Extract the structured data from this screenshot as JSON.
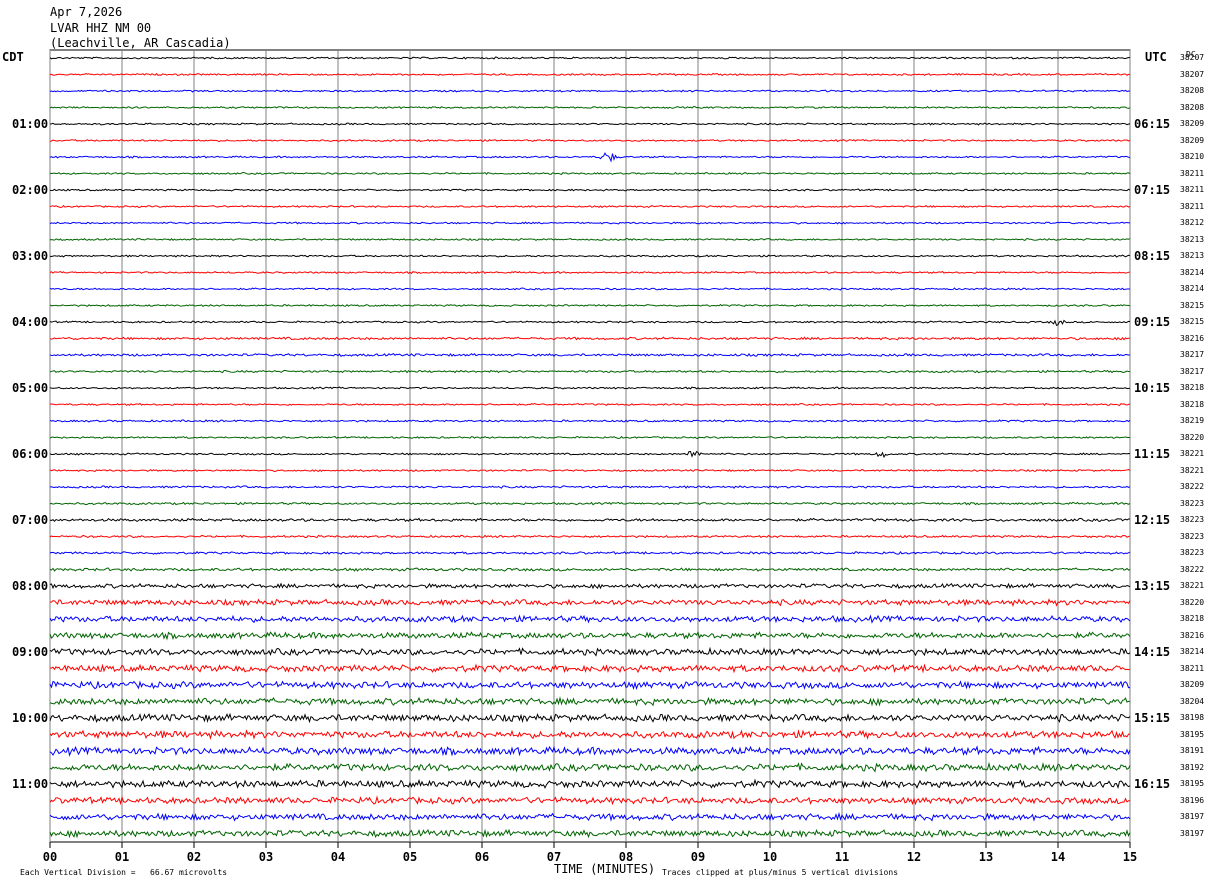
{
  "header": {
    "date": "Apr 7,2026",
    "station": "LVAR HHZ NM 00",
    "location": "(Leachville, AR Cascadia)"
  },
  "left_zone": "CDT",
  "right_zone": "UTC",
  "dc_label": "DC",
  "footer": {
    "scale_note": "Each Vertical Division =   66.67 microvolts",
    "xlabel": "TIME (MINUTES)",
    "clip_note": "Traces clipped at plus/minus 5 vertical divisions"
  },
  "colors": {
    "trace_cycle": [
      "#000000",
      "#ff0000",
      "#0000ff",
      "#006400"
    ],
    "grid": "#808080"
  },
  "chart_data": {
    "type": "line",
    "title": "",
    "xlabel": "TIME (MINUTES)",
    "xlim": [
      0,
      15
    ],
    "x_ticks": [
      "00",
      "01",
      "02",
      "03",
      "04",
      "05",
      "06",
      "07",
      "08",
      "09",
      "10",
      "11",
      "12",
      "13",
      "14",
      "15"
    ],
    "left_hour_labels": [
      "01:00",
      "02:00",
      "03:00",
      "04:00",
      "05:00",
      "06:00",
      "07:00",
      "08:00",
      "09:00",
      "10:00",
      "11:00"
    ],
    "right_hour_labels": [
      "06:15",
      "07:15",
      "08:15",
      "09:15",
      "10:15",
      "11:15",
      "12:15",
      "13:15",
      "14:15",
      "15:15",
      "16:15"
    ],
    "trace_count": 48,
    "trace_offsets": [
      38207,
      38207,
      38208,
      38208,
      38209,
      38209,
      38210,
      38211,
      38211,
      38211,
      38212,
      38213,
      38213,
      38214,
      38214,
      38215,
      38215,
      38216,
      38217,
      38217,
      38218,
      38218,
      38219,
      38220,
      38221,
      38221,
      38222,
      38223,
      38223,
      38223,
      38223,
      38222,
      38221,
      38220,
      38218,
      38216,
      38214,
      38211,
      38209,
      38204,
      38198,
      38195,
      38191,
      38192,
      38195,
      38196,
      38197,
      38197
    ],
    "trace_amplitudes": [
      1,
      1,
      1,
      1,
      1,
      1,
      1,
      1,
      1,
      1,
      1,
      1,
      1,
      1,
      1,
      1,
      1,
      1.4,
      1.4,
      1.2,
      1,
      1,
      1.1,
      1,
      1,
      1,
      1.2,
      1.2,
      1.6,
      1.2,
      1.3,
      1.6,
      2.4,
      3.2,
      3.4,
      3.4,
      3.6,
      3.8,
      3.8,
      3.8,
      4,
      4,
      4.2,
      4,
      4,
      3.6,
      3.6,
      3.6
    ],
    "events": [
      {
        "trace": 6,
        "minute": 7.75,
        "amplitude": 6
      },
      {
        "trace": 16,
        "minute": 14.0,
        "amplitude": 3
      },
      {
        "trace": 24,
        "minute": 8.95,
        "amplitude": 4
      },
      {
        "trace": 24,
        "minute": 11.55,
        "amplitude": 3
      }
    ]
  }
}
